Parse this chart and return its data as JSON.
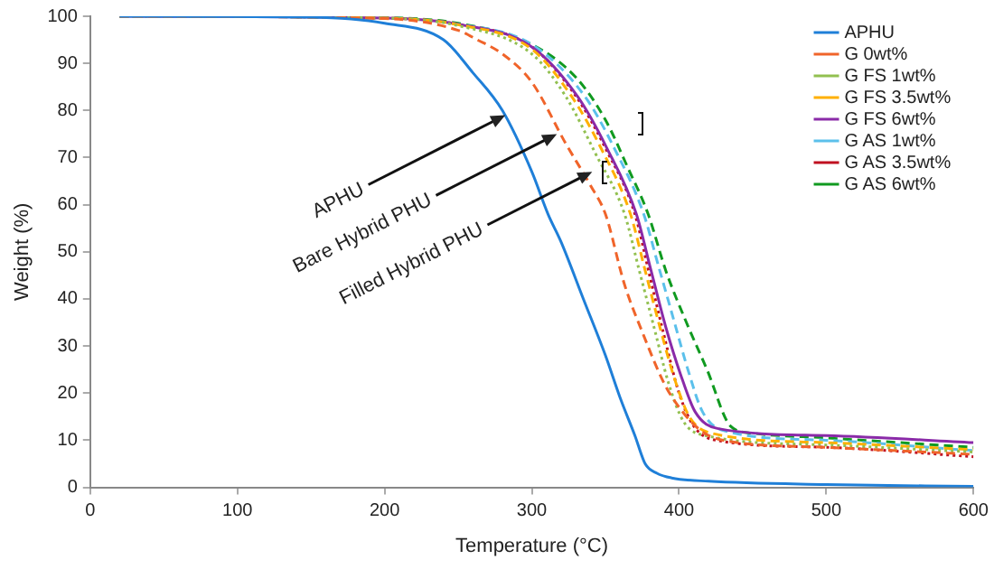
{
  "chart_data": {
    "type": "line",
    "xlabel": "Temperature (°C)",
    "ylabel": "Weight (%)",
    "xlim": [
      0,
      600
    ],
    "ylim": [
      0,
      100
    ],
    "xticks": [
      0,
      100,
      200,
      300,
      400,
      500,
      600
    ],
    "yticks": [
      0,
      10,
      20,
      30,
      40,
      50,
      60,
      70,
      80,
      90,
      100
    ],
    "legend": "top right",
    "marker": "none",
    "series": [
      {
        "name": "APHU",
        "color": "#1f7fd8",
        "line_style": "solid",
        "x": [
          20,
          150,
          200,
          240,
          260,
          280,
          300,
          311,
          320,
          335,
          350,
          360,
          370,
          377,
          385,
          395,
          420,
          500,
          600
        ],
        "values": [
          100,
          99.8,
          98.5,
          95,
          88,
          80,
          67,
          58,
          52,
          40,
          28,
          19,
          11,
          5,
          3,
          2,
          1.3,
          0.6,
          0.2
        ]
      },
      {
        "name": "G 0wt%",
        "color": "#f0642a",
        "line_style": "dashed",
        "x": [
          20,
          200,
          250,
          263,
          280,
          300,
          323,
          340,
          350,
          363,
          375,
          390,
          400,
          415,
          430,
          500,
          600
        ],
        "values": [
          100,
          99.5,
          97,
          95,
          92,
          86,
          73,
          64,
          58,
          43,
          33,
          22,
          17,
          12,
          10,
          8.5,
          7
        ]
      },
      {
        "name": "G FS 1wt%",
        "color": "#92c050",
        "line_style": "dotted",
        "x": [
          20,
          200,
          250,
          300,
          323,
          343,
          363,
          373,
          383,
          393,
          403,
          418,
          500,
          600
        ],
        "values": [
          100,
          99.6,
          98,
          92,
          83,
          71,
          58,
          46,
          34,
          22,
          14,
          11,
          9,
          7.5
        ]
      },
      {
        "name": "G FS 3.5wt%",
        "color": "#ffb000",
        "line_style": "dashed",
        "x": [
          20,
          200,
          250,
          300,
          327,
          347,
          367,
          377,
          387,
          397,
          407,
          422,
          500,
          600
        ],
        "values": [
          100,
          99.6,
          98.2,
          93,
          83,
          72,
          58,
          46,
          34,
          23,
          15,
          11.5,
          9.5,
          8
        ]
      },
      {
        "name": "G FS 6wt%",
        "color": "#8a2aa8",
        "line_style": "solid",
        "x": [
          20,
          200,
          250,
          300,
          331,
          351,
          371,
          381,
          391,
          401,
          411,
          426,
          500,
          600
        ],
        "values": [
          100,
          99.6,
          98.3,
          93.5,
          83,
          72,
          58,
          46,
          34,
          24,
          16,
          12.5,
          11,
          9.5
        ]
      },
      {
        "name": "G AS 1wt%",
        "color": "#5bc0eb",
        "line_style": "dashed",
        "x": [
          20,
          200,
          250,
          300,
          336,
          356,
          376,
          386,
          396,
          406,
          416,
          431,
          500,
          600
        ],
        "values": [
          100,
          99.6,
          98.3,
          94,
          83,
          72,
          58,
          47,
          36,
          25,
          16,
          12,
          10,
          7.8
        ]
      },
      {
        "name": "G AS 3.5wt%",
        "color": "#c01020",
        "line_style": "dotted",
        "x": [
          20,
          200,
          250,
          300,
          330,
          350,
          370,
          380,
          390,
          400,
          410,
          425,
          500,
          600
        ],
        "values": [
          100,
          99.6,
          98.3,
          93.5,
          83,
          72,
          58,
          45,
          32,
          20,
          13,
          10,
          8.5,
          6.5
        ]
      },
      {
        "name": "G AS 6wt%",
        "color": "#109a20",
        "line_style": "dashed",
        "x": [
          20,
          200,
          250,
          300,
          330,
          350,
          365,
          379,
          391,
          405,
          419,
          435,
          450,
          500,
          600
        ],
        "values": [
          100,
          99.7,
          98.5,
          94,
          87,
          78,
          68,
          58,
          46,
          35,
          25,
          13,
          11.5,
          10.5,
          8.5
        ]
      }
    ],
    "annotations": [
      {
        "text": "APHU",
        "x": 282,
        "y": 79
      },
      {
        "text": "Bare Hybrid PHU",
        "x": 317,
        "y": 75
      },
      {
        "text": "Filled Hybrid PHU",
        "x": 341,
        "y": 67
      }
    ]
  }
}
